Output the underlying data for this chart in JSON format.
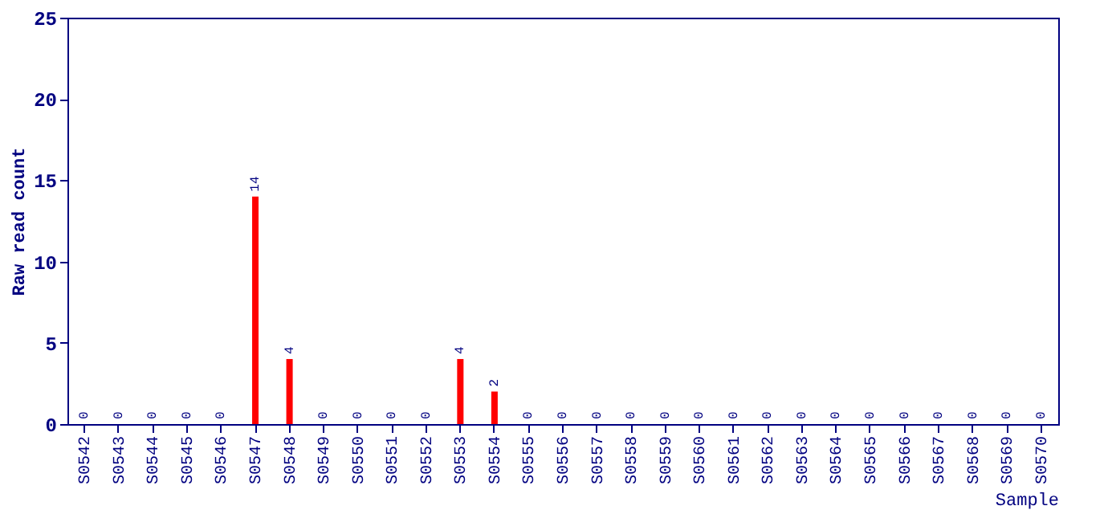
{
  "chart_data": {
    "type": "bar",
    "xlabel": "Sample",
    "ylabel": "Raw read count",
    "categories": [
      "S0542",
      "S0543",
      "S0544",
      "S0545",
      "S0546",
      "S0547",
      "S0548",
      "S0549",
      "S0550",
      "S0551",
      "S0552",
      "S0553",
      "S0554",
      "S0555",
      "S0556",
      "S0557",
      "S0558",
      "S0559",
      "S0560",
      "S0561",
      "S0562",
      "S0563",
      "S0564",
      "S0565",
      "S0566",
      "S0567",
      "S0568",
      "S0569",
      "S0570"
    ],
    "values": [
      0,
      0,
      0,
      0,
      0,
      14,
      4,
      0,
      0,
      0,
      0,
      4,
      2,
      0,
      0,
      0,
      0,
      0,
      0,
      0,
      0,
      0,
      0,
      0,
      0,
      0,
      0,
      0,
      0
    ],
    "color": "#ff0000",
    "ylim": [
      0,
      25
    ],
    "yticks": [
      0,
      5,
      10,
      15,
      20,
      25
    ],
    "grid": false,
    "data_labels": true
  }
}
